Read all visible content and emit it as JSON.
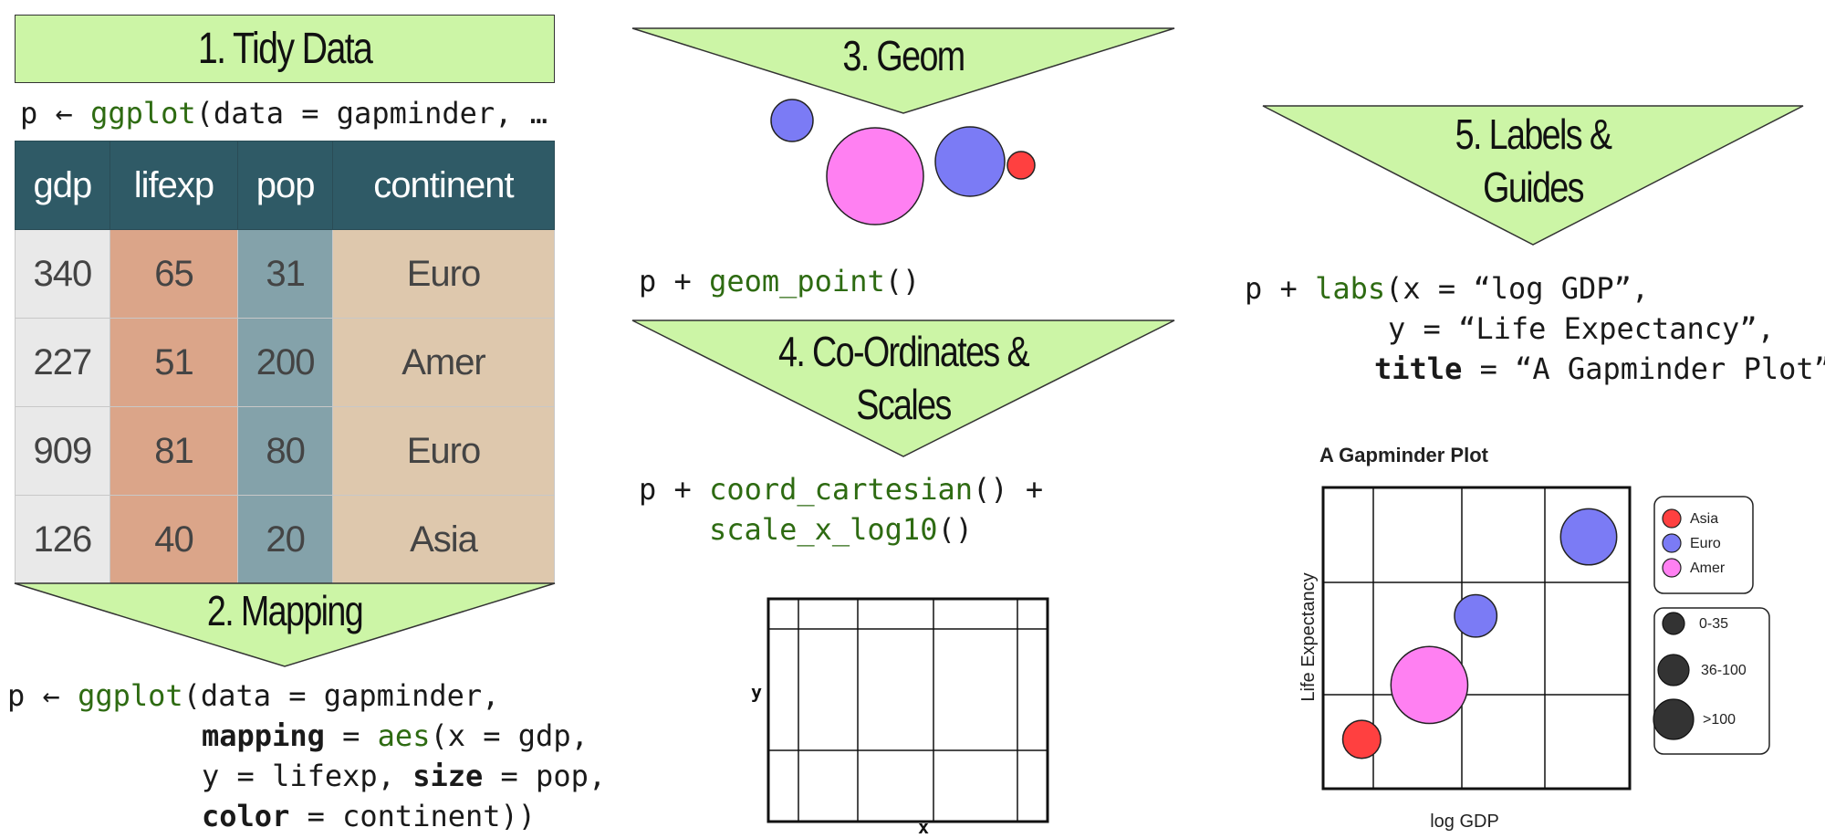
{
  "steps": {
    "tidy_data": "1. Tidy Data",
    "mapping": "2. Mapping",
    "geom": "3. Geom",
    "coords_line1": "4. Co-Ordinates &",
    "coords_line2": "Scales",
    "labels_line1": "5. Labels &",
    "labels_line2": "Guides"
  },
  "code": {
    "tidy": {
      "pre": "p ← ",
      "fn": "ggplot",
      "post": "(data = gapminder, …"
    },
    "mapping": {
      "l1_pre": "p ← ",
      "l1_fn": "ggplot",
      "l1_post": "(data = gapminder,",
      "l2_kw": "mapping",
      "l2_mid": " = ",
      "l2_fn": "aes",
      "l2_post": "(x = gdp,",
      "l3_a": "y = lifexp, ",
      "l3_kw": "size",
      "l3_post": " = pop,",
      "l4_kw": "color",
      "l4_post": " = continent))"
    },
    "geom": {
      "pre": "p + ",
      "fn": "geom_point",
      "post": "()"
    },
    "coords": {
      "l1_pre": "p + ",
      "l1_fn": "coord_cartesian",
      "l1_post": "() +",
      "l2_fn": "scale_x_log10",
      "l2_post": "()"
    },
    "labs": {
      "l1_pre": "p + ",
      "l1_fn": "labs",
      "l1_post": "(x = “log GDP”,",
      "l2": "y = “Life Expectancy”,",
      "l3_kw": "title",
      "l3_post": " = “A Gapminder Plot”)"
    }
  },
  "table": {
    "headers": [
      "gdp",
      "lifexp",
      "pop",
      "continent"
    ],
    "rows": [
      [
        "340",
        "65",
        "31",
        "Euro"
      ],
      [
        "227",
        "51",
        "200",
        "Amer"
      ],
      [
        "909",
        "81",
        "80",
        "Euro"
      ],
      [
        "126",
        "40",
        "20",
        "Asia"
      ]
    ],
    "column_colors": [
      "#e9e9e9",
      "#dba589",
      "#84a2aa",
      "#dec8ad"
    ]
  },
  "coord_axes": {
    "x": "x",
    "y": "y"
  },
  "chart_data": {
    "type": "scatter",
    "title": "A Gapminder Plot",
    "xlabel": "log GDP",
    "ylabel": "Life Expectancy",
    "grid": true,
    "legend_position": "right",
    "series": [
      {
        "name": "Asia",
        "color": "#ff4040"
      },
      {
        "name": "Euro",
        "color": "#7b7bf5"
      },
      {
        "name": "Amer",
        "color": "#ff80f2"
      }
    ],
    "size_legend": [
      "0-35",
      "36-100",
      ">100"
    ],
    "points": [
      {
        "x": 126,
        "y": 40,
        "size": 20,
        "continent": "Asia"
      },
      {
        "x": 340,
        "y": 65,
        "size": 31,
        "continent": "Euro"
      },
      {
        "x": 227,
        "y": 51,
        "size": 200,
        "continent": "Amer"
      },
      {
        "x": 909,
        "y": 81,
        "size": 80,
        "continent": "Euro"
      }
    ]
  }
}
